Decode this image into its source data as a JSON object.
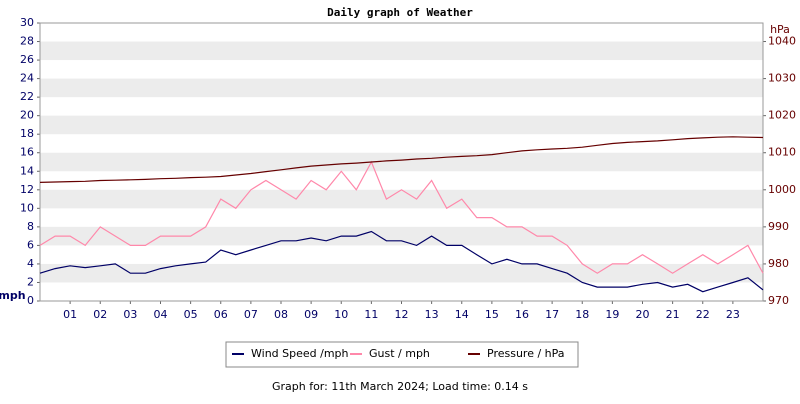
{
  "chart_data": {
    "type": "line",
    "title": "Daily graph of Weather",
    "ylabel": "mph",
    "y2label": "hPa",
    "footer": "Graph for: 11th March 2024; Load time: 0.14 s",
    "x": [
      0,
      0.5,
      1,
      1.5,
      2,
      2.5,
      3,
      3.5,
      4,
      4.5,
      5,
      5.5,
      6,
      6.5,
      7,
      7.5,
      8,
      8.5,
      9,
      9.5,
      10,
      10.5,
      11,
      11.5,
      12,
      12.5,
      13,
      13.5,
      14,
      14.5,
      15,
      15.5,
      16,
      16.5,
      17,
      17.5,
      18,
      18.5,
      19,
      19.5,
      20,
      20.5,
      21,
      21.5,
      22,
      22.5,
      23,
      23.5,
      24
    ],
    "xlim": [
      0,
      24
    ],
    "xticks": [
      {
        "value": 1,
        "label": "01"
      },
      {
        "value": 2,
        "label": "02"
      },
      {
        "value": 3,
        "label": "03"
      },
      {
        "value": 4,
        "label": "04"
      },
      {
        "value": 5,
        "label": "05"
      },
      {
        "value": 6,
        "label": "06"
      },
      {
        "value": 7,
        "label": "07"
      },
      {
        "value": 8,
        "label": "08"
      },
      {
        "value": 9,
        "label": "09"
      },
      10,
      11,
      12,
      13,
      14,
      15,
      16,
      17,
      18,
      19,
      20,
      21,
      22,
      23
    ],
    "ylim": [
      0,
      30
    ],
    "yticks": [
      0,
      2,
      4,
      6,
      8,
      10,
      12,
      14,
      16,
      18,
      20,
      22,
      24,
      26,
      28,
      30
    ],
    "y2lim": [
      970,
      1045
    ],
    "y2ticks": [
      970,
      980,
      990,
      1000,
      1010,
      1020,
      1030,
      1040
    ],
    "grid": true,
    "series": [
      {
        "name": "Wind Speed /mph",
        "color": "#000066",
        "values": [
          3,
          3.5,
          3.8,
          3.6,
          3.8,
          4,
          3,
          3,
          3.5,
          3.8,
          4,
          4.2,
          5.5,
          5,
          5.5,
          6,
          6.5,
          6.5,
          6.8,
          6.5,
          7,
          7,
          7.5,
          6.5,
          6.5,
          6,
          7,
          6,
          6,
          5,
          4,
          4.5,
          4,
          4,
          3.5,
          3,
          2,
          1.5,
          1.5,
          1.5,
          1.8,
          2,
          1.5,
          1.8,
          1,
          1.5,
          2,
          2.5,
          1.2
        ]
      },
      {
        "name": "Gust / mph",
        "color": "#ff88aa",
        "values": [
          6,
          7,
          7,
          6,
          8,
          7,
          6,
          6,
          7,
          7,
          7,
          8,
          11,
          10,
          12,
          13,
          12,
          11,
          13,
          12,
          14,
          12,
          15,
          11,
          12,
          11,
          13,
          10,
          11,
          9,
          9,
          8,
          8,
          7,
          7,
          6,
          4,
          3,
          4,
          4,
          5,
          4,
          3,
          4,
          5,
          4,
          5,
          6,
          3
        ]
      },
      {
        "name": "Pressure / hPa",
        "color": "#660000",
        "axis": "y2",
        "values": [
          1002,
          1002.1,
          1002.2,
          1002.3,
          1002.5,
          1002.6,
          1002.7,
          1002.8,
          1003,
          1003.1,
          1003.3,
          1003.4,
          1003.6,
          1004,
          1004.4,
          1004.9,
          1005.4,
          1005.9,
          1006.4,
          1006.7,
          1007,
          1007.2,
          1007.5,
          1007.8,
          1008,
          1008.3,
          1008.5,
          1008.8,
          1009,
          1009.2,
          1009.5,
          1010,
          1010.5,
          1010.8,
          1011,
          1011.2,
          1011.5,
          1012,
          1012.5,
          1012.8,
          1013,
          1013.2,
          1013.5,
          1013.8,
          1014,
          1014.2,
          1014.3,
          1014.2,
          1014.1
        ]
      }
    ]
  }
}
